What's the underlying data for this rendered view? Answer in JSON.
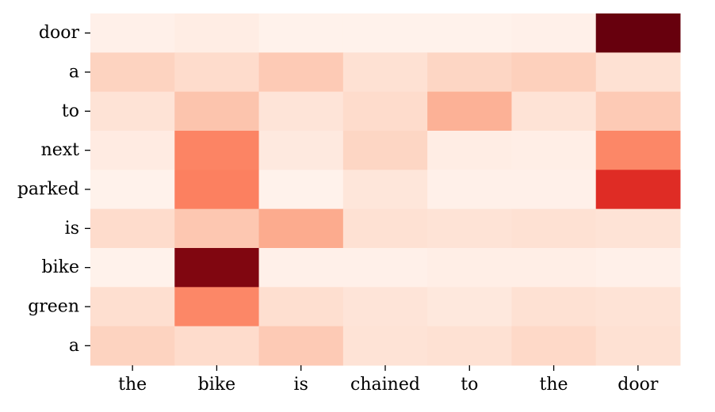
{
  "chart_data": {
    "type": "heatmap",
    "x_labels": [
      "the",
      "bike",
      "is",
      "chained",
      "to",
      "the",
      "door"
    ],
    "y_labels": [
      "door",
      "a",
      "to",
      "next",
      "parked",
      "is",
      "bike",
      "green",
      "a"
    ],
    "values": [
      [
        0.03,
        0.05,
        0.02,
        0.02,
        0.02,
        0.03,
        1.0
      ],
      [
        0.17,
        0.14,
        0.2,
        0.12,
        0.16,
        0.18,
        0.12
      ],
      [
        0.11,
        0.22,
        0.1,
        0.14,
        0.28,
        0.11,
        0.2
      ],
      [
        0.06,
        0.42,
        0.07,
        0.16,
        0.05,
        0.04,
        0.41
      ],
      [
        0.02,
        0.43,
        0.02,
        0.09,
        0.03,
        0.03,
        0.68
      ],
      [
        0.14,
        0.21,
        0.3,
        0.12,
        0.11,
        0.12,
        0.11
      ],
      [
        0.02,
        0.95,
        0.03,
        0.03,
        0.04,
        0.04,
        0.03
      ],
      [
        0.13,
        0.41,
        0.13,
        0.1,
        0.08,
        0.12,
        0.11
      ],
      [
        0.17,
        0.14,
        0.2,
        0.11,
        0.12,
        0.15,
        0.12
      ]
    ],
    "colormap": [
      "#fff5f0",
      "#fee0d2",
      "#fcbba1",
      "#fc9272",
      "#fb6a4a",
      "#ef3b2c",
      "#cb181d",
      "#a50f15",
      "#67000d"
    ],
    "title": "",
    "xlabel": "",
    "ylabel": ""
  }
}
